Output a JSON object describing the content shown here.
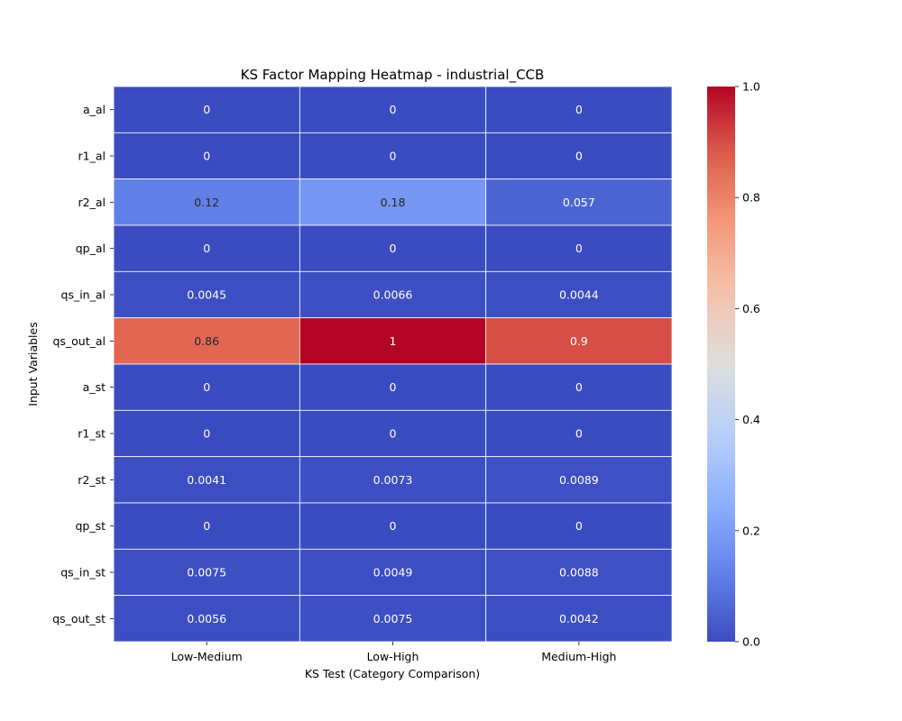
{
  "chart_data": {
    "type": "heatmap",
    "title": "KS Factor Mapping Heatmap - industrial_CCB",
    "xlabel": "KS Test (Category Comparison)",
    "ylabel": "Input Variables",
    "columns": [
      "Low-Medium",
      "Low-High",
      "Medium-High"
    ],
    "rows": [
      "a_al",
      "r1_al",
      "r2_al",
      "qp_al",
      "qs_in_al",
      "qs_out_al",
      "a_st",
      "r1_st",
      "r2_st",
      "qp_st",
      "qs_in_st",
      "qs_out_st"
    ],
    "values": [
      [
        0,
        0,
        0
      ],
      [
        0,
        0,
        0
      ],
      [
        0.12,
        0.18,
        0.057
      ],
      [
        0,
        0,
        0
      ],
      [
        0.0045,
        0.0066,
        0.0044
      ],
      [
        0.86,
        1,
        0.9
      ],
      [
        0,
        0,
        0
      ],
      [
        0,
        0,
        0
      ],
      [
        0.0041,
        0.0073,
        0.0089
      ],
      [
        0,
        0,
        0
      ],
      [
        0.0075,
        0.0049,
        0.0088
      ],
      [
        0.0056,
        0.0075,
        0.0042
      ]
    ],
    "labels": [
      [
        "0",
        "0",
        "0"
      ],
      [
        "0",
        "0",
        "0"
      ],
      [
        "0.12",
        "0.18",
        "0.057"
      ],
      [
        "0",
        "0",
        "0"
      ],
      [
        "0.0045",
        "0.0066",
        "0.0044"
      ],
      [
        "0.86",
        "1",
        "0.9"
      ],
      [
        "0",
        "0",
        "0"
      ],
      [
        "0",
        "0",
        "0"
      ],
      [
        "0.0041",
        "0.0073",
        "0.0089"
      ],
      [
        "0",
        "0",
        "0"
      ],
      [
        "0.0075",
        "0.0049",
        "0.0088"
      ],
      [
        "0.0056",
        "0.0075",
        "0.0042"
      ]
    ],
    "colormap": "coolwarm",
    "vmin": 0,
    "vmax": 1,
    "colorbar_ticks": [
      "0.0",
      "0.2",
      "0.4",
      "0.6",
      "0.8",
      "1.0"
    ],
    "colorbar_tick_values": [
      0,
      0.2,
      0.4,
      0.6,
      0.8,
      1.0
    ]
  }
}
